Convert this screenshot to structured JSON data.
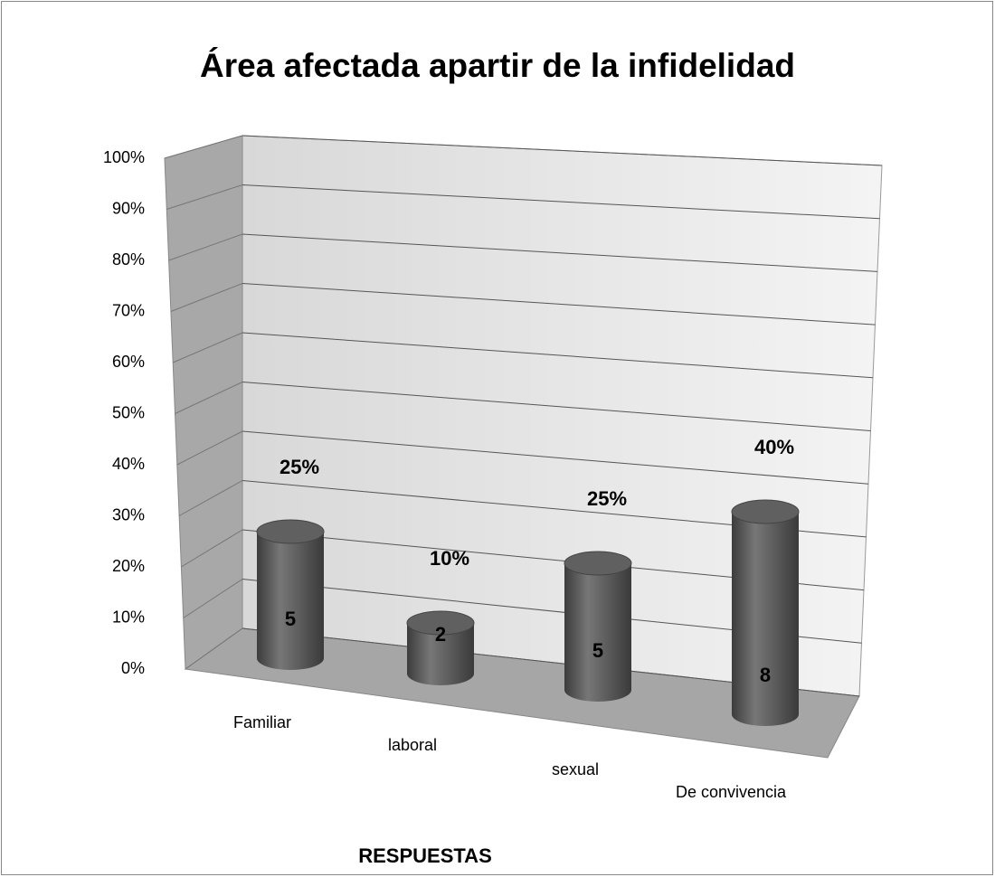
{
  "chart_data": {
    "type": "bar3d",
    "title": "Área afectada apartir de la infidelidad",
    "x_label": "RESPUESTAS",
    "categories": [
      "Familiar",
      "laboral",
      "sexual",
      "De convivencia"
    ],
    "values": [
      25,
      10,
      25,
      40
    ],
    "value_labels": [
      "25%",
      "10%",
      "25%",
      "40%"
    ],
    "counts": [
      5,
      2,
      5,
      8
    ],
    "color": "#5a5a5a",
    "ylim": [
      0,
      100
    ],
    "yticks": [
      {
        "value": 0,
        "label": "0%"
      },
      {
        "value": 10,
        "label": "10%"
      },
      {
        "value": 20,
        "label": "20%"
      },
      {
        "value": 30,
        "label": "30%"
      },
      {
        "value": 40,
        "label": "40%"
      },
      {
        "value": 50,
        "label": "50%"
      },
      {
        "value": 60,
        "label": "60%"
      },
      {
        "value": 70,
        "label": "70%"
      },
      {
        "value": 80,
        "label": "80%"
      },
      {
        "value": 90,
        "label": "90%"
      },
      {
        "value": 100,
        "label": "100%"
      }
    ],
    "grid": true
  }
}
